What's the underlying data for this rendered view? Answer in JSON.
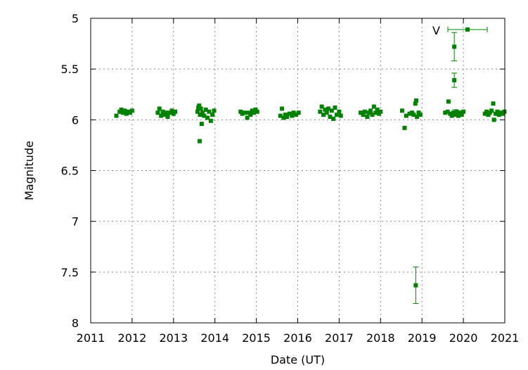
{
  "chart_data": {
    "type": "scatter",
    "xlabel": "Date (UT)",
    "ylabel": "Magnitude",
    "xlim": [
      2011,
      2021
    ],
    "ylim": [
      8,
      5
    ],
    "y_inverted": true,
    "xticks": [
      "2011",
      "2012",
      "2013",
      "2014",
      "2015",
      "2016",
      "2017",
      "2018",
      "2019",
      "2020",
      "2021"
    ],
    "yticks": [
      "5",
      "5.5",
      "6",
      "6.5",
      "7",
      "7.5",
      "8"
    ],
    "legend": {
      "position": "top-right",
      "entries": [
        {
          "label": "V",
          "color": "#008000"
        }
      ]
    },
    "marker_color": "#008000",
    "series": [
      {
        "name": "V",
        "points": [
          {
            "x": 2011.62,
            "y": 5.96
          },
          {
            "x": 2011.7,
            "y": 5.92
          },
          {
            "x": 2011.74,
            "y": 5.9
          },
          {
            "x": 2011.78,
            "y": 5.93
          },
          {
            "x": 2011.82,
            "y": 5.91
          },
          {
            "x": 2011.86,
            "y": 5.94
          },
          {
            "x": 2011.9,
            "y": 5.92
          },
          {
            "x": 2011.95,
            "y": 5.93
          },
          {
            "x": 2012.0,
            "y": 5.91
          },
          {
            "x": 2012.62,
            "y": 5.93
          },
          {
            "x": 2012.66,
            "y": 5.89
          },
          {
            "x": 2012.7,
            "y": 5.96
          },
          {
            "x": 2012.74,
            "y": 5.92
          },
          {
            "x": 2012.78,
            "y": 5.95
          },
          {
            "x": 2012.82,
            "y": 5.93
          },
          {
            "x": 2012.86,
            "y": 5.97
          },
          {
            "x": 2012.9,
            "y": 5.93
          },
          {
            "x": 2012.96,
            "y": 5.91
          },
          {
            "x": 2013.0,
            "y": 5.94
          },
          {
            "x": 2013.04,
            "y": 5.92
          },
          {
            "x": 2013.58,
            "y": 5.92
          },
          {
            "x": 2013.6,
            "y": 5.88
          },
          {
            "x": 2013.62,
            "y": 5.86
          },
          {
            "x": 2013.63,
            "y": 6.21
          },
          {
            "x": 2013.64,
            "y": 5.95
          },
          {
            "x": 2013.66,
            "y": 5.89
          },
          {
            "x": 2013.68,
            "y": 6.04
          },
          {
            "x": 2013.7,
            "y": 5.93
          },
          {
            "x": 2013.74,
            "y": 5.96
          },
          {
            "x": 2013.78,
            "y": 5.9
          },
          {
            "x": 2013.82,
            "y": 5.98
          },
          {
            "x": 2013.86,
            "y": 5.92
          },
          {
            "x": 2013.9,
            "y": 6.01
          },
          {
            "x": 2013.94,
            "y": 5.95
          },
          {
            "x": 2013.98,
            "y": 5.91
          },
          {
            "x": 2014.62,
            "y": 5.92
          },
          {
            "x": 2014.66,
            "y": 5.94
          },
          {
            "x": 2014.72,
            "y": 5.93
          },
          {
            "x": 2014.78,
            "y": 5.98
          },
          {
            "x": 2014.82,
            "y": 5.93
          },
          {
            "x": 2014.86,
            "y": 5.95
          },
          {
            "x": 2014.9,
            "y": 5.91
          },
          {
            "x": 2014.94,
            "y": 5.93
          },
          {
            "x": 2014.98,
            "y": 5.9
          },
          {
            "x": 2015.02,
            "y": 5.92
          },
          {
            "x": 2015.58,
            "y": 5.96
          },
          {
            "x": 2015.62,
            "y": 5.89
          },
          {
            "x": 2015.66,
            "y": 5.98
          },
          {
            "x": 2015.7,
            "y": 5.95
          },
          {
            "x": 2015.74,
            "y": 5.97
          },
          {
            "x": 2015.8,
            "y": 5.94
          },
          {
            "x": 2015.86,
            "y": 5.96
          },
          {
            "x": 2015.9,
            "y": 5.93
          },
          {
            "x": 2015.96,
            "y": 5.95
          },
          {
            "x": 2016.02,
            "y": 5.93
          },
          {
            "x": 2016.54,
            "y": 5.92
          },
          {
            "x": 2016.58,
            "y": 5.87
          },
          {
            "x": 2016.62,
            "y": 5.95
          },
          {
            "x": 2016.66,
            "y": 5.9
          },
          {
            "x": 2016.7,
            "y": 5.93
          },
          {
            "x": 2016.74,
            "y": 5.89
          },
          {
            "x": 2016.78,
            "y": 5.97
          },
          {
            "x": 2016.82,
            "y": 5.91
          },
          {
            "x": 2016.86,
            "y": 5.99
          },
          {
            "x": 2016.9,
            "y": 5.88
          },
          {
            "x": 2016.94,
            "y": 5.95
          },
          {
            "x": 2017.0,
            "y": 5.92
          },
          {
            "x": 2017.04,
            "y": 5.96
          },
          {
            "x": 2017.52,
            "y": 5.93
          },
          {
            "x": 2017.58,
            "y": 5.95
          },
          {
            "x": 2017.62,
            "y": 5.92
          },
          {
            "x": 2017.68,
            "y": 5.97
          },
          {
            "x": 2017.72,
            "y": 5.93
          },
          {
            "x": 2017.76,
            "y": 5.91
          },
          {
            "x": 2017.8,
            "y": 5.95
          },
          {
            "x": 2017.84,
            "y": 5.87
          },
          {
            "x": 2017.88,
            "y": 5.93
          },
          {
            "x": 2017.92,
            "y": 5.9
          },
          {
            "x": 2017.96,
            "y": 5.94
          },
          {
            "x": 2018.0,
            "y": 5.92
          },
          {
            "x": 2018.52,
            "y": 5.91
          },
          {
            "x": 2018.58,
            "y": 6.08
          },
          {
            "x": 2018.62,
            "y": 5.96
          },
          {
            "x": 2018.7,
            "y": 5.94
          },
          {
            "x": 2018.76,
            "y": 5.93
          },
          {
            "x": 2018.8,
            "y": 5.95
          },
          {
            "x": 2018.84,
            "y": 5.84
          },
          {
            "x": 2018.86,
            "y": 5.81
          },
          {
            "x": 2018.88,
            "y": 5.97
          },
          {
            "x": 2018.92,
            "y": 5.93
          },
          {
            "x": 2018.96,
            "y": 5.95
          },
          {
            "x": 2019.56,
            "y": 5.93
          },
          {
            "x": 2019.62,
            "y": 5.92
          },
          {
            "x": 2019.64,
            "y": 5.82
          },
          {
            "x": 2019.68,
            "y": 5.94
          },
          {
            "x": 2019.72,
            "y": 5.96
          },
          {
            "x": 2019.76,
            "y": 5.93
          },
          {
            "x": 2019.8,
            "y": 5.95
          },
          {
            "x": 2019.84,
            "y": 5.92
          },
          {
            "x": 2019.88,
            "y": 5.96
          },
          {
            "x": 2019.92,
            "y": 5.93
          },
          {
            "x": 2019.96,
            "y": 5.95
          },
          {
            "x": 2020.0,
            "y": 5.92
          },
          {
            "x": 2020.52,
            "y": 5.94
          },
          {
            "x": 2020.56,
            "y": 5.92
          },
          {
            "x": 2020.6,
            "y": 5.95
          },
          {
            "x": 2020.64,
            "y": 5.93
          },
          {
            "x": 2020.68,
            "y": 5.91
          },
          {
            "x": 2020.72,
            "y": 5.84
          },
          {
            "x": 2020.74,
            "y": 6.0
          },
          {
            "x": 2020.78,
            "y": 5.94
          },
          {
            "x": 2020.82,
            "y": 5.92
          },
          {
            "x": 2020.86,
            "y": 5.95
          },
          {
            "x": 2020.9,
            "y": 5.93
          },
          {
            "x": 2020.95,
            "y": 5.94
          },
          {
            "x": 2020.99,
            "y": 5.92
          }
        ],
        "error_points": [
          {
            "x": 2018.85,
            "y": 7.63,
            "yerr": 0.18
          },
          {
            "x": 2019.78,
            "y": 5.28,
            "yerr": 0.14
          },
          {
            "x": 2019.78,
            "y": 5.61,
            "yerr": 0.07
          },
          {
            "x": 2019.8,
            "y": 5.93,
            "yerr": 0.03
          }
        ]
      }
    ]
  }
}
